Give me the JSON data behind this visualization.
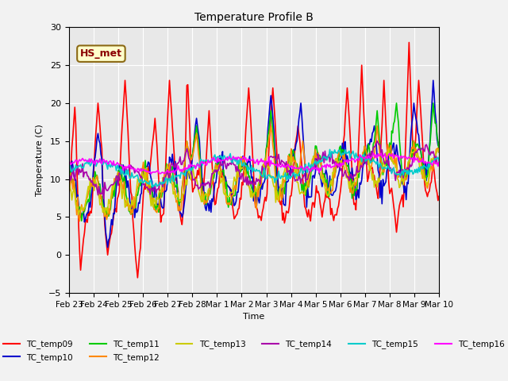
{
  "title": "Temperature Profile B",
  "xlabel": "Time",
  "ylabel": "Temperature (C)",
  "ylim": [
    -5,
    30
  ],
  "x_tick_labels": [
    "Feb 23",
    "Feb 24",
    "Feb 25",
    "Feb 26",
    "Feb 27",
    "Feb 28",
    "Mar 1",
    "Mar 2",
    "Mar 3",
    "Mar 4",
    "Mar 5",
    "Mar 6",
    "Mar 7",
    "Mar 8",
    "Mar 9",
    "Mar 10"
  ],
  "annotation_label": "HS_met",
  "series_colors": {
    "TC_temp09": "#ff0000",
    "TC_temp10": "#0000cc",
    "TC_temp11": "#00cc00",
    "TC_temp12": "#ff8800",
    "TC_temp13": "#cccc00",
    "TC_temp14": "#aa00aa",
    "TC_temp15": "#00cccc",
    "TC_temp16": "#ff00ff"
  },
  "legend_order": [
    "TC_temp09",
    "TC_temp10",
    "TC_temp11",
    "TC_temp12",
    "TC_temp13",
    "TC_temp14",
    "TC_temp15",
    "TC_temp16"
  ],
  "n_points": 384,
  "seed": 42,
  "line_width": 1.2,
  "bg_color": "#e8e8e8",
  "fig_color": "#f2f2f2",
  "yticks": [
    -5,
    0,
    5,
    10,
    15,
    20,
    25,
    30
  ]
}
